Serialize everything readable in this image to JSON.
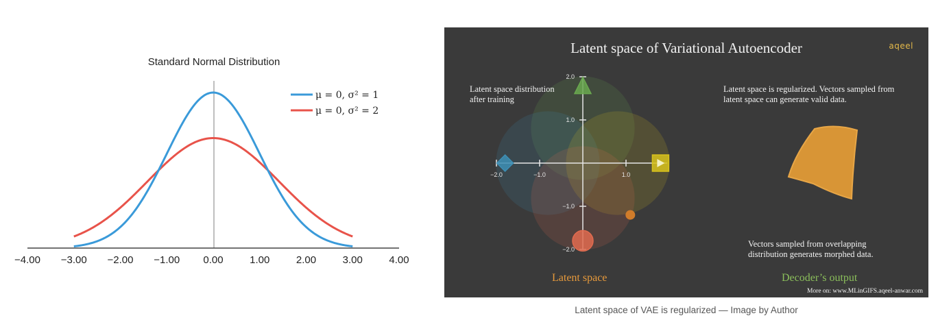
{
  "chart_data": [
    {
      "type": "line",
      "title": "Standard Normal Distribution",
      "xlabel": "",
      "ylabel": "",
      "xlim": [
        -4.0,
        4.0
      ],
      "x_tick_labels": [
        "−4.00",
        "−3.00",
        "−2.00",
        "−1.00",
        "0.00",
        "1.00",
        "2.00",
        "3.00",
        "4.00"
      ],
      "x_ticks": [
        -4,
        -3,
        -2,
        -1,
        0,
        1,
        2,
        3,
        4
      ],
      "x_range_plotted": [
        -3.0,
        3.0
      ],
      "legend_position": "top-right",
      "series": [
        {
          "name": "μ = 0, σ² = 1",
          "mu": 0,
          "variance": 1,
          "color": "#3a9ad9",
          "peak_density": 0.399
        },
        {
          "name": "μ = 0, σ² = 2",
          "mu": 0,
          "variance": 2,
          "color": "#e8534a",
          "peak_density": 0.282
        }
      ]
    },
    {
      "type": "scatter",
      "title": "Latent space of Variational Autoencoder",
      "xlim": [
        -2.0,
        2.0
      ],
      "ylim": [
        -2.0,
        2.0
      ],
      "x_tick_labels": [
        "−2.0",
        "−1.0",
        "1.0"
      ],
      "x_ticks": [
        -2,
        -1,
        1
      ],
      "y_tick_labels": [
        "2.0",
        "1.0",
        "−1.0",
        "−2.0"
      ],
      "y_ticks": [
        2,
        1,
        -1,
        -2
      ],
      "distributions": [
        {
          "shape": "triangle",
          "x": 0.0,
          "y": 1.8,
          "radius": 1.2,
          "color": "#6aa84f"
        },
        {
          "shape": "diamond",
          "x": -1.8,
          "y": 0.0,
          "radius": 1.2,
          "color": "#3d8fb5"
        },
        {
          "shape": "square",
          "x": 1.8,
          "y": 0.0,
          "radius": 1.2,
          "color": "#d8c21c"
        },
        {
          "shape": "circle",
          "x": 0.0,
          "y": -1.8,
          "radius": 1.2,
          "color": "#e06b4f"
        }
      ],
      "sampled_point": {
        "x": 1.1,
        "y": -1.2,
        "color": "#d07c2a"
      }
    }
  ],
  "vae": {
    "title": "Latent space of Variational Autoencoder",
    "logo": "aqeel",
    "note_left_1": "Latent space distribution",
    "note_left_2": "after training",
    "note_right_1": "Latent space is regularized. Vectors sampled from",
    "note_right_2": "latent space can generate valid data.",
    "note_bottom_1": "Vectors sampled from overlapping",
    "note_bottom_2": "distribution generates morphed data.",
    "label_latent": "Latent space",
    "label_decoder": "Decoder’s output",
    "credit": "More on: www.MLinGIFS.aqeel-anwar.com",
    "colors": {
      "panel_bg": "#3a3a3a",
      "latent_label": "#e79a3c",
      "decoder_label": "#8bbf5b",
      "output_fill": "#d89536"
    }
  },
  "caption": "Latent space of VAE is regularized — Image by Author"
}
